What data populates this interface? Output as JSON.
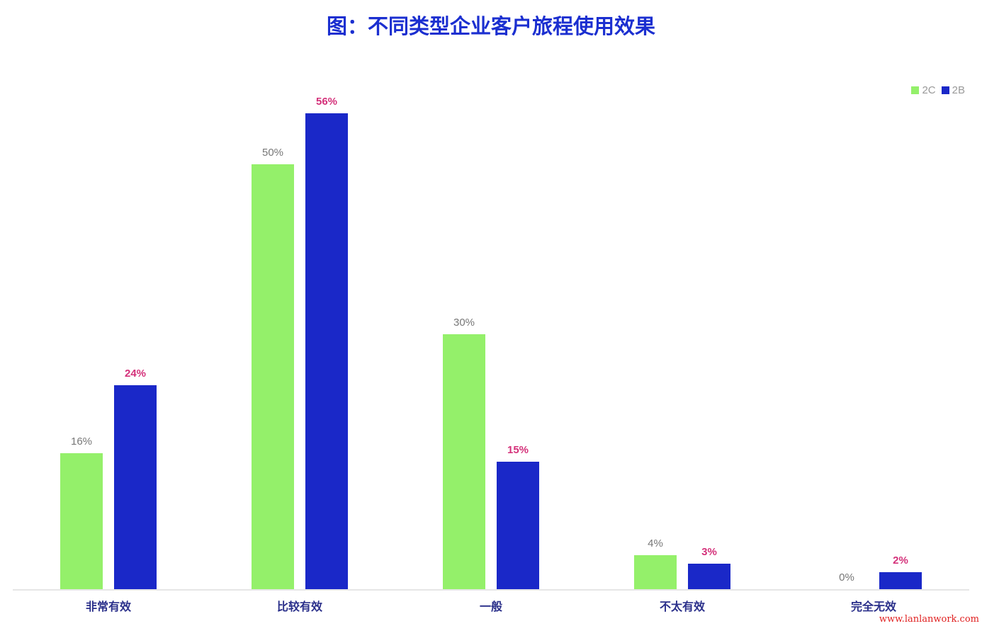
{
  "title": "图：不同类型企业客户旅程使用效果",
  "watermark": "www.lanlanwork.com",
  "chart_data": {
    "type": "bar",
    "title": "图：不同类型企业客户旅程使用效果",
    "categories": [
      "非常有效",
      "比较有效",
      "一般",
      "不太有效",
      "完全无效"
    ],
    "series": [
      {
        "name": "2C",
        "values": [
          16,
          50,
          30,
          4,
          0
        ],
        "color": "#94f06a",
        "label_color": "#777777"
      },
      {
        "name": "2B",
        "values": [
          24,
          56,
          15,
          3,
          2
        ],
        "color": "#1a28c8",
        "label_color": "#d4317a"
      }
    ],
    "value_suffix": "%",
    "ylim": [
      0,
      60
    ],
    "grid": false,
    "legend": "top-right"
  }
}
